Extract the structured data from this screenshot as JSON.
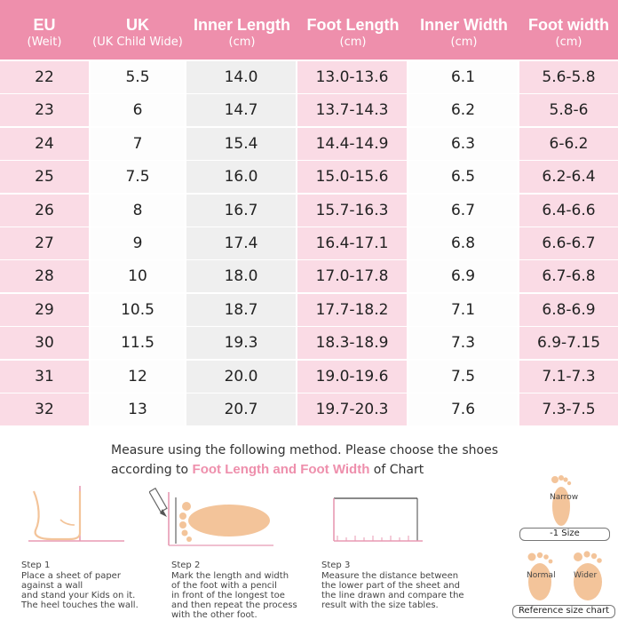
{
  "table": {
    "headers": [
      {
        "title": "EU",
        "sub": "(Weit)"
      },
      {
        "title": "UK",
        "sub": "(UK Child Wide)"
      },
      {
        "title": "Inner Length",
        "sub": "(cm)"
      },
      {
        "title": "Foot Length",
        "sub": "(cm)"
      },
      {
        "title": "Inner Width",
        "sub": "(cm)"
      },
      {
        "title": "Foot width",
        "sub": "(cm)"
      }
    ],
    "rows": [
      [
        "22",
        "5.5",
        "14.0",
        "13.0-13.6",
        "6.1",
        "5.6-5.8"
      ],
      [
        "23",
        "6",
        "14.7",
        "13.7-14.3",
        "6.2",
        "5.8-6"
      ],
      [
        "24",
        "7",
        "15.4",
        "14.4-14.9",
        "6.3",
        "6-6.2"
      ],
      [
        "25",
        "7.5",
        "16.0",
        "15.0-15.6",
        "6.5",
        "6.2-6.4"
      ],
      [
        "26",
        "8",
        "16.7",
        "15.7-16.3",
        "6.7",
        "6.4-6.6"
      ],
      [
        "27",
        "9",
        "17.4",
        "16.4-17.1",
        "6.8",
        "6.6-6.7"
      ],
      [
        "28",
        "10",
        "18.0",
        "17.0-17.8",
        "6.9",
        "6.7-6.8"
      ],
      [
        "29",
        "10.5",
        "18.7",
        "17.7-18.2",
        "7.1",
        "6.8-6.9"
      ],
      [
        "30",
        "11.5",
        "19.3",
        "18.3-18.9",
        "7.3",
        "6.9-7.15"
      ],
      [
        "31",
        "12",
        "20.0",
        "19.0-19.6",
        "7.5",
        "7.1-7.3"
      ],
      [
        "32",
        "13",
        "20.7",
        "19.7-20.3",
        "7.6",
        "7.3-7.5"
      ]
    ]
  },
  "instructions": {
    "line1": "Measure using the following method. Please choose the shoes",
    "line2_prefix": "according to ",
    "line2_highlight": "Foot Length and Foot Width",
    "line2_suffix": " of Chart",
    "steps": [
      {
        "title": "Step 1",
        "lines": [
          "Place a sheet of paper",
          "against a wall",
          "and stand your Kids on it.",
          "The heel touches the wall."
        ]
      },
      {
        "title": "Step 2",
        "lines": [
          "Mark the length and width",
          "of the foot with a pencil",
          "in front of the longest toe",
          "and then repeat the process",
          "with the other foot."
        ]
      },
      {
        "title": "Step 3",
        "lines": [
          "Measure the distance between",
          "the lower part of the sheet and",
          "the line drawn and compare the",
          "result with the size tables."
        ]
      }
    ]
  },
  "reference": {
    "narrow_label": "Narrow",
    "size_pill": "-1 Size",
    "normal_label": "Normal",
    "wider_label": "Wider",
    "chart_pill": "Reference size chart"
  },
  "colors": {
    "accent": "#ee8fac",
    "pink_cell": "#fadbe5",
    "grey_cell": "#efefef",
    "foot": "#f3c49a"
  }
}
